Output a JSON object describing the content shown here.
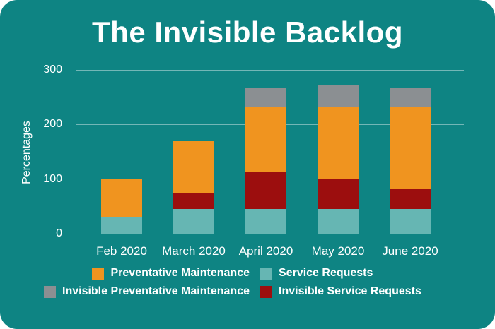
{
  "title": "The Invisible Backlog",
  "colors": {
    "background": "#0e8483",
    "text": "#ffffff",
    "gridline": "rgba(255,255,255,0.42)",
    "orange": "#f0941f",
    "light_teal": "#66b6b3",
    "gray": "#8b8f92",
    "dark_red": "#9c0e0e"
  },
  "chart_data": {
    "type": "bar",
    "stacked": true,
    "title": "The Invisible Backlog",
    "xlabel": "",
    "ylabel": "Percentages",
    "categories": [
      "Feb 2020",
      "March 2020",
      "April 2020",
      "May 2020",
      "June 2020"
    ],
    "series": [
      {
        "name": "Service Requests",
        "color": "#66b6b3",
        "values": [
          30,
          45,
          45,
          45,
          45
        ]
      },
      {
        "name": "Invisible Service Requests",
        "color": "#9c0e0e",
        "values": [
          0,
          30,
          68,
          55,
          37
        ]
      },
      {
        "name": "Preventative Maintenance",
        "color": "#f0941f",
        "values": [
          70,
          95,
          120,
          133,
          151
        ]
      },
      {
        "name": "Invisible Preventative Maintenance",
        "color": "#8b8f92",
        "values": [
          0,
          0,
          33,
          39,
          33
        ]
      }
    ],
    "stack_totals": [
      100,
      170,
      266,
      272,
      266
    ],
    "yticks": [
      0,
      100,
      200,
      300
    ],
    "ylim": [
      0,
      300
    ],
    "grid": true,
    "legend_position": "bottom",
    "legend_order": [
      "Preventative Maintenance",
      "Service Requests",
      "Invisible Preventative Maintenance",
      "Invisible Service Requests"
    ]
  }
}
